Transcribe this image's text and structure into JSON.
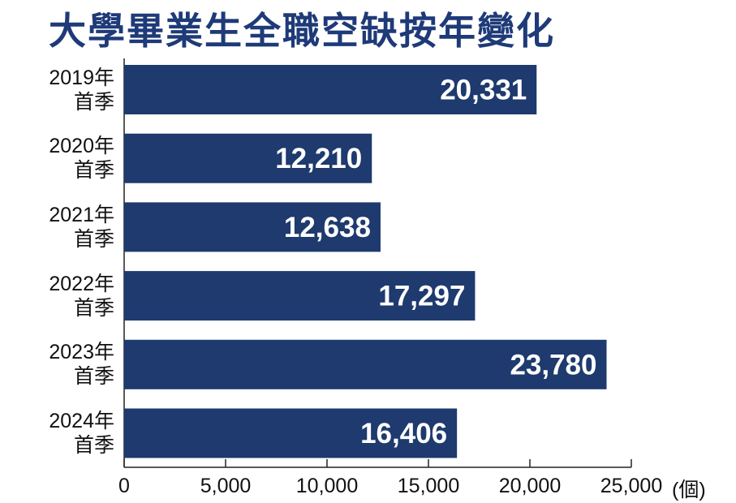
{
  "chart_data": {
    "type": "barh",
    "title": "大學畢業生全職空缺按年變化",
    "x_label": "(個)",
    "categories": [
      "2019年\n首季",
      "2020年\n首季",
      "2021年\n首季",
      "2022年\n首季",
      "2023年\n首季",
      "2024年\n首季"
    ],
    "values": [
      20331,
      12210,
      12638,
      17297,
      23780,
      16406
    ],
    "value_labels": [
      "20,331",
      "12,210",
      "12,638",
      "17,297",
      "23,780",
      "16,406"
    ],
    "color": "#1e3a6e",
    "xlim": [
      0,
      25000
    ],
    "xticks": [
      0,
      {
        "value": 5000,
        "label": "5,000"
      },
      {
        "value": 10000,
        "label": "10,000"
      },
      {
        "value": 15000,
        "label": "15,000"
      },
      {
        "value": 20000,
        "label": "20,000"
      },
      {
        "value": 25000,
        "label": "25,000"
      }
    ]
  }
}
